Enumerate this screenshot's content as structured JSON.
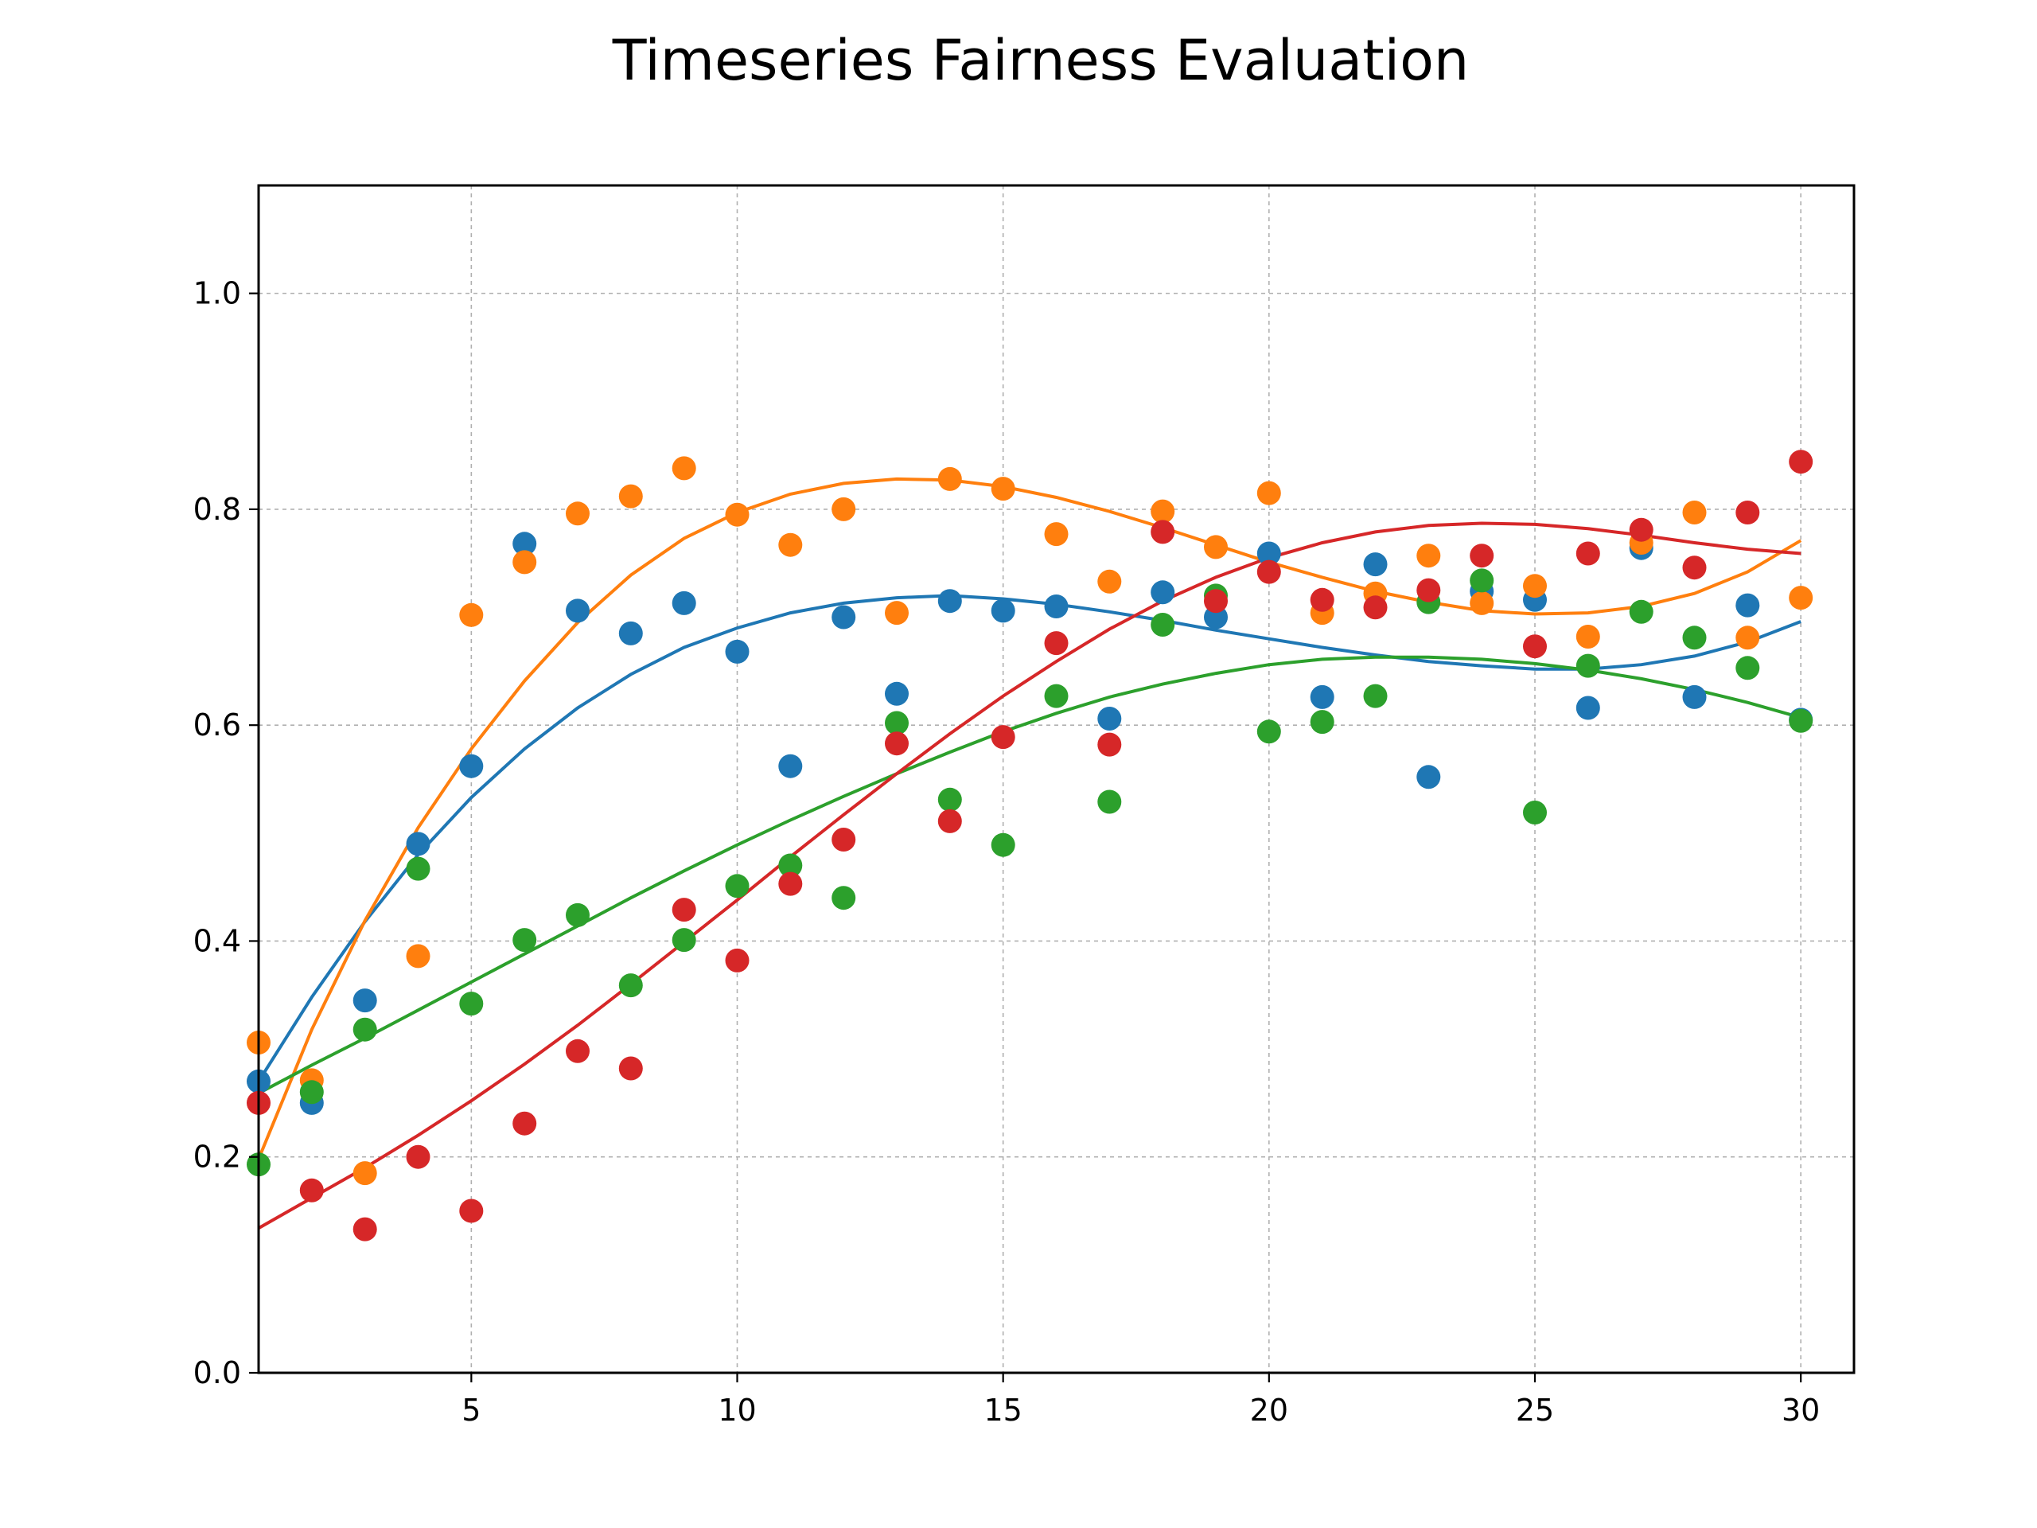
{
  "chart_data": {
    "type": "scatter",
    "title": "Timeseries Fairness Evaluation",
    "xlabel": "",
    "ylabel": "",
    "xlim": [
      1,
      31
    ],
    "ylim": [
      0,
      1.1
    ],
    "x_ticks": [
      "5",
      "10",
      "15",
      "20",
      "25",
      "30"
    ],
    "y_ticks": [
      "0.0",
      "0.2",
      "0.4",
      "0.6",
      "0.8",
      "1.0"
    ],
    "grid": true,
    "legend": "none",
    "x": [
      1,
      2,
      3,
      4,
      5,
      6,
      7,
      8,
      9,
      10,
      11,
      12,
      13,
      14,
      15,
      16,
      17,
      18,
      19,
      20,
      21,
      22,
      23,
      24,
      25,
      26,
      27,
      28,
      29,
      30
    ],
    "series": [
      {
        "color": "#1f77b4",
        "points": [
          0.27,
          0.25,
          0.345,
          0.49,
          0.562,
          0.768,
          0.706,
          0.685,
          0.713,
          0.668,
          0.562,
          0.7,
          0.629,
          0.715,
          0.706,
          0.71,
          0.606,
          0.723,
          0.7,
          0.759,
          0.626,
          0.749,
          0.552,
          0.724,
          0.716,
          0.616,
          0.764,
          0.626,
          0.711,
          0.605
        ],
        "trend": [
          0.27,
          0.348,
          0.418,
          0.48,
          0.533,
          0.578,
          0.616,
          0.647,
          0.672,
          0.69,
          0.704,
          0.713,
          0.718,
          0.72,
          0.717,
          0.712,
          0.705,
          0.697,
          0.688,
          0.68,
          0.672,
          0.665,
          0.659,
          0.655,
          0.652,
          0.652,
          0.656,
          0.664,
          0.677,
          0.696
        ]
      },
      {
        "color": "#ff7f0e",
        "points": [
          0.306,
          0.271,
          0.185,
          0.386,
          0.702,
          0.751,
          0.796,
          0.812,
          0.838,
          0.795,
          0.767,
          0.8,
          0.704,
          0.828,
          0.819,
          0.777,
          0.733,
          0.798,
          0.765,
          0.815,
          0.704,
          0.722,
          0.757,
          0.713,
          0.729,
          0.682,
          0.769,
          0.797,
          0.681,
          0.718
        ],
        "trend": [
          0.198,
          0.318,
          0.419,
          0.505,
          0.578,
          0.641,
          0.695,
          0.739,
          0.773,
          0.797,
          0.814,
          0.824,
          0.828,
          0.827,
          0.821,
          0.811,
          0.798,
          0.783,
          0.767,
          0.751,
          0.737,
          0.724,
          0.714,
          0.706,
          0.703,
          0.704,
          0.71,
          0.722,
          0.742,
          0.771
        ]
      },
      {
        "color": "#2ca02c",
        "points": [
          0.193,
          0.26,
          0.318,
          0.467,
          0.342,
          0.401,
          0.424,
          0.359,
          0.401,
          0.451,
          0.47,
          0.44,
          0.602,
          0.531,
          0.489,
          0.627,
          0.529,
          0.693,
          0.72,
          0.594,
          0.603,
          0.627,
          0.714,
          0.734,
          0.519,
          0.655,
          0.705,
          0.681,
          0.653,
          0.604
        ],
        "trend": [
          0.259,
          0.285,
          0.31,
          0.336,
          0.362,
          0.388,
          0.414,
          0.44,
          0.465,
          0.489,
          0.512,
          0.534,
          0.555,
          0.575,
          0.594,
          0.611,
          0.626,
          0.638,
          0.648,
          0.656,
          0.661,
          0.663,
          0.663,
          0.661,
          0.657,
          0.651,
          0.643,
          0.633,
          0.621,
          0.607
        ]
      },
      {
        "color": "#d62728",
        "points": [
          0.25,
          0.169,
          0.133,
          0.2,
          0.15,
          0.231,
          0.298,
          0.282,
          0.429,
          0.382,
          0.453,
          0.494,
          0.583,
          0.511,
          0.589,
          0.676,
          0.582,
          0.779,
          0.715,
          0.742,
          0.716,
          0.709,
          0.725,
          0.757,
          0.673,
          0.759,
          0.781,
          0.746,
          0.797,
          0.844
        ],
        "trend": [
          0.134,
          0.162,
          0.19,
          0.22,
          0.252,
          0.286,
          0.322,
          0.36,
          0.399,
          0.438,
          0.478,
          0.517,
          0.555,
          0.592,
          0.627,
          0.659,
          0.689,
          0.715,
          0.737,
          0.755,
          0.769,
          0.779,
          0.785,
          0.787,
          0.786,
          0.782,
          0.776,
          0.769,
          0.763,
          0.759
        ]
      }
    ]
  }
}
